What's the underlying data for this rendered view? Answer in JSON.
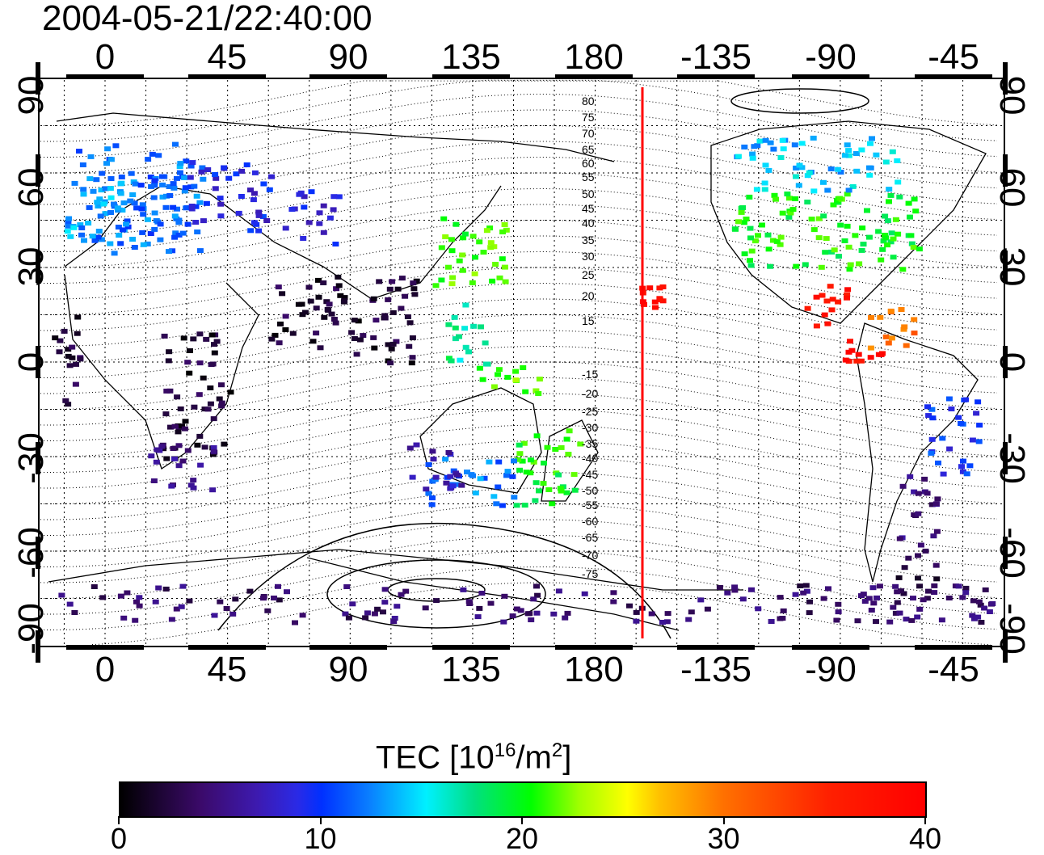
{
  "timestamp": "2004-05-21/22:40:00",
  "lon_labels": [
    "0",
    "45",
    "90",
    "135",
    "180",
    "-135",
    "-90",
    "-45"
  ],
  "lat_labels": [
    "90",
    "60",
    "30",
    "0",
    "-30",
    "-60",
    "-90"
  ],
  "contour_labels": [
    "80",
    "75",
    "70",
    "65",
    "60",
    "55",
    "50",
    "45",
    "40",
    "35",
    "30",
    "25",
    "20",
    "15",
    "-15",
    "-20",
    "-25",
    "-30",
    "-35",
    "-40",
    "-45",
    "-50",
    "-55",
    "-60",
    "-65",
    "-70",
    "-75"
  ],
  "colorbar": {
    "title_main": "TEC  [10",
    "title_exp1": "16",
    "title_mid": "/m",
    "title_exp2": "2",
    "title_end": "]",
    "ticks": [
      "0",
      "10",
      "20",
      "30",
      "40"
    ]
  },
  "colors": {
    "terminator": "#ff0000",
    "frame": "#000000"
  },
  "regions": [
    {
      "lon": [
        -15,
        35
      ],
      "lat": [
        35,
        70
      ],
      "val": 12
    },
    {
      "lon": [
        -15,
        5
      ],
      "lat": [
        40,
        62
      ],
      "val": 13
    },
    {
      "lon": [
        5,
        30
      ],
      "lat": [
        40,
        60
      ],
      "val": 11.5
    },
    {
      "lon": [
        30,
        60
      ],
      "lat": [
        42,
        65
      ],
      "val": 9
    },
    {
      "lon": [
        65,
        85
      ],
      "lat": [
        38,
        55
      ],
      "val": 8
    },
    {
      "lon": [
        120,
        148
      ],
      "lat": [
        25,
        48
      ],
      "val": 21
    },
    {
      "lon": [
        135,
        160
      ],
      "lat": [
        -10,
        0
      ],
      "val": 22
    },
    {
      "lon": [
        150,
        175
      ],
      "lat": [
        -45,
        -20
      ],
      "val": 20
    },
    {
      "lon": [
        115,
        150
      ],
      "lat": [
        -45,
        -30
      ],
      "val": 12
    },
    {
      "lon": [
        -130,
        -60
      ],
      "lat": [
        30,
        55
      ],
      "val": 20
    },
    {
      "lon": [
        -130,
        -70
      ],
      "lat": [
        55,
        72
      ],
      "val": 14
    },
    {
      "lon": [
        -105,
        -85
      ],
      "lat": [
        12,
        25
      ],
      "val": 37
    },
    {
      "lon": [
        -80,
        -60
      ],
      "lat": [
        5,
        18
      ],
      "val": 30
    },
    {
      "lon": [
        -90,
        -75
      ],
      "lat": [
        0,
        10
      ],
      "val": 38
    },
    {
      "lon": [
        -165,
        -155
      ],
      "lat": [
        18,
        25
      ],
      "val": 39
    },
    {
      "lon": [
        -60,
        -40
      ],
      "lat": [
        -35,
        -10
      ],
      "val": 10
    },
    {
      "lon": [
        -70,
        -55
      ],
      "lat": [
        -55,
        -35
      ],
      "val": 5
    },
    {
      "lon": [
        -70,
        -55
      ],
      "lat": [
        -75,
        -55
      ],
      "val": 3
    },
    {
      "lon": [
        90,
        115
      ],
      "lat": [
        0,
        28
      ],
      "val": 2
    },
    {
      "lon": [
        60,
        90
      ],
      "lat": [
        5,
        28
      ],
      "val": 2
    },
    {
      "lon": [
        20,
        45
      ],
      "lat": [
        -30,
        10
      ],
      "val": 2
    },
    {
      "lon": [
        15,
        40
      ],
      "lat": [
        -40,
        -25
      ],
      "val": 5
    },
    {
      "lon": [
        110,
        130
      ],
      "lat": [
        -40,
        -25
      ],
      "val": 7
    },
    {
      "lon": [
        -180,
        180
      ],
      "lat": [
        -82,
        -70
      ],
      "val": 4
    },
    {
      "lon": [
        -20,
        -10
      ],
      "lat": [
        -15,
        15
      ],
      "val": 2
    },
    {
      "lon": [
        125,
        140
      ],
      "lat": [
        0,
        20
      ],
      "val": 17
    }
  ]
}
